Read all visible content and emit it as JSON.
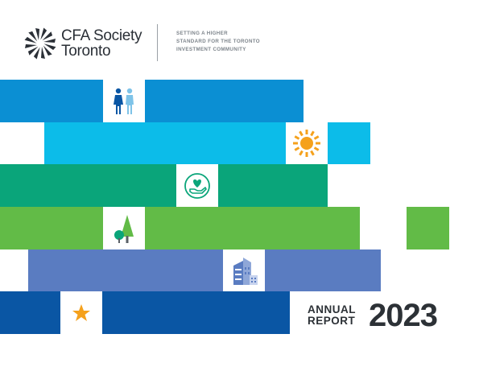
{
  "header": {
    "org_line1": "CFA Society",
    "org_line2": "Toronto",
    "tagline_line1": "SETTING A HIGHER",
    "tagline_line2": "STANDARD FOR THE TORONTO",
    "tagline_line3": "INVESTMENT COMMUNITY"
  },
  "title": {
    "annual": "ANNUAL",
    "report": "REPORT",
    "year": "2023"
  },
  "colors": {
    "blue": "#0b8fd3",
    "sky": "#0cbce9",
    "green": "#0aa57a",
    "lime": "#62bb47",
    "periwinkle": "#5a7cc1",
    "navy": "#0a56a4",
    "orange": "#f5a11c"
  },
  "icons": {
    "row1": "people-icon",
    "row2": "sun-icon",
    "row3": "heart-hand-icon",
    "row4": "trees-icon",
    "row5": "buildings-icon",
    "row6": "star-icon"
  }
}
